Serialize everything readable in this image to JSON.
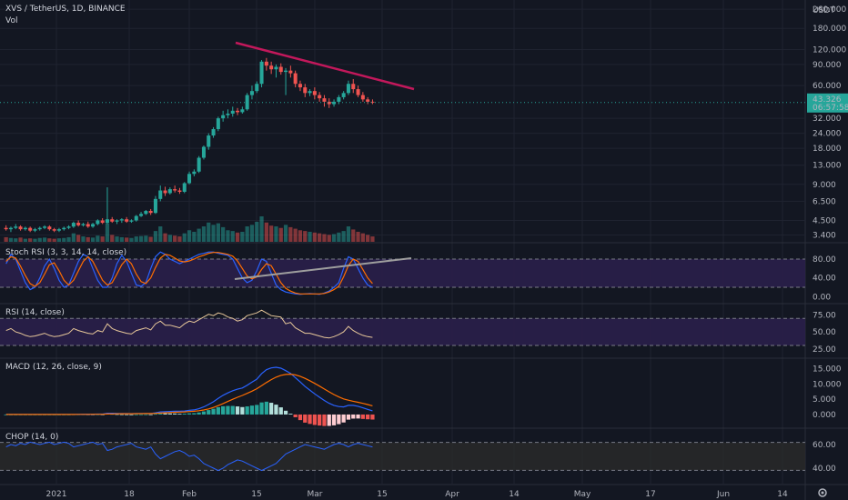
{
  "colors": {
    "background": "#131722",
    "grid": "#1f2330",
    "up": "#26a69a",
    "down": "#ef5350",
    "band": "#2a1f4a",
    "trendline_red": "#c2185b",
    "trendline_gray": "#9e9e9e",
    "price_tag": "#26a69a",
    "k_line": "#2962ff",
    "d_line": "#ff6d00"
  },
  "chart_data": [
    {
      "type": "candlestick",
      "panel": "price",
      "title": "XVS / TetherUS, 1D, BINANCE",
      "volume_label": "Vol",
      "y_scale": "log",
      "ylim": [
        3.2,
        270
      ],
      "y_ticks": [
        "260.000",
        "180.000",
        "120.000",
        "90.000",
        "60.000",
        "43.326",
        "32.000",
        "24.000",
        "18.000",
        "13.000",
        "9.000",
        "6.500",
        "4.500",
        "3.400"
      ],
      "y_unit": "USDT",
      "last_price": "43.326",
      "countdown": "06:57:58",
      "x_ticks": [
        "2021",
        "18",
        "Feb",
        "15",
        "Mar",
        "15",
        "Apr",
        "14",
        "May",
        "17",
        "Jun",
        "14"
      ],
      "candles": [
        [
          3.9,
          4.1,
          3.8,
          3.7
        ],
        [
          3.8,
          4.0,
          3.9,
          3.6
        ],
        [
          3.9,
          4.2,
          4.0,
          3.8
        ],
        [
          4.0,
          4.1,
          3.8,
          3.7
        ],
        [
          3.8,
          4.0,
          3.9,
          3.7
        ],
        [
          3.9,
          4.0,
          3.7,
          3.6
        ],
        [
          3.7,
          3.9,
          3.8,
          3.6
        ],
        [
          3.8,
          4.0,
          3.9,
          3.7
        ],
        [
          3.9,
          4.1,
          4.0,
          3.8
        ],
        [
          4.0,
          4.1,
          3.8,
          3.7
        ],
        [
          3.8,
          3.9,
          3.7,
          3.6
        ],
        [
          3.7,
          3.9,
          3.8,
          3.6
        ],
        [
          3.8,
          4.0,
          3.9,
          3.7
        ],
        [
          3.9,
          4.1,
          4.0,
          3.8
        ],
        [
          4.0,
          4.4,
          4.3,
          3.9
        ],
        [
          4.3,
          4.5,
          4.1,
          4.0
        ],
        [
          4.1,
          4.3,
          4.2,
          4.0
        ],
        [
          4.2,
          4.4,
          4.0,
          3.9
        ],
        [
          4.0,
          4.3,
          4.2,
          3.9
        ],
        [
          4.2,
          4.6,
          4.5,
          4.1
        ],
        [
          4.5,
          4.7,
          4.3,
          4.2
        ],
        [
          4.3,
          8.5,
          4.6,
          4.2
        ],
        [
          4.6,
          4.8,
          4.4,
          4.3
        ],
        [
          4.4,
          4.6,
          4.5,
          4.2
        ],
        [
          4.5,
          4.7,
          4.6,
          4.3
        ],
        [
          4.6,
          4.8,
          4.4,
          4.3
        ],
        [
          4.4,
          4.6,
          4.5,
          4.3
        ],
        [
          4.5,
          5.0,
          4.9,
          4.4
        ],
        [
          4.9,
          5.3,
          5.1,
          4.8
        ],
        [
          5.1,
          5.5,
          5.4,
          5.0
        ],
        [
          5.4,
          5.6,
          5.2,
          5.0
        ],
        [
          5.2,
          7.2,
          6.8,
          5.1
        ],
        [
          6.8,
          8.8,
          8.0,
          6.5
        ],
        [
          8.0,
          8.6,
          7.6,
          7.2
        ],
        [
          7.6,
          8.5,
          8.2,
          7.4
        ],
        [
          8.2,
          8.8,
          8.0,
          7.7
        ],
        [
          8.0,
          8.4,
          7.8,
          7.5
        ],
        [
          7.8,
          9.4,
          9.2,
          7.6
        ],
        [
          9.2,
          11.5,
          11.0,
          9.0
        ],
        [
          11.0,
          12.0,
          11.5,
          10.5
        ],
        [
          11.5,
          15.5,
          15.0,
          11.2
        ],
        [
          15.0,
          19.0,
          18.5,
          14.5
        ],
        [
          18.5,
          24.0,
          23.0,
          17.5
        ],
        [
          23.0,
          27.0,
          26.0,
          22.0
        ],
        [
          26.0,
          33.0,
          32.0,
          25.0
        ],
        [
          32.0,
          37.0,
          34.0,
          30.0
        ],
        [
          34.0,
          38.0,
          35.0,
          32.0
        ],
        [
          35.0,
          40.0,
          37.0,
          33.0
        ],
        [
          37.0,
          39.0,
          36.0,
          34.0
        ],
        [
          36.0,
          40.0,
          38.0,
          35.0
        ],
        [
          38.0,
          52.0,
          50.0,
          37.0
        ],
        [
          50.0,
          60.0,
          54.0,
          46.0
        ],
        [
          54.0,
          65.0,
          62.0,
          52.0
        ],
        [
          62.0,
          98.0,
          95.0,
          58.0
        ],
        [
          95.0,
          102.0,
          88.0,
          80.0
        ],
        [
          88.0,
          95.0,
          82.0,
          75.0
        ],
        [
          82.0,
          90.0,
          86.0,
          70.0
        ],
        [
          86.0,
          92.0,
          78.0,
          74.0
        ],
        [
          78.0,
          84.0,
          80.0,
          50.0
        ],
        [
          80.0,
          88.0,
          76.0,
          70.0
        ],
        [
          76.0,
          80.0,
          62.0,
          58.0
        ],
        [
          62.0,
          66.0,
          58.0,
          54.0
        ],
        [
          58.0,
          62.0,
          52.0,
          48.0
        ],
        [
          52.0,
          56.0,
          54.0,
          49.0
        ],
        [
          54.0,
          58.0,
          50.0,
          46.0
        ],
        [
          50.0,
          53.0,
          47.0,
          44.0
        ],
        [
          47.0,
          50.0,
          44.0,
          40.0
        ],
        [
          44.0,
          47.0,
          42.0,
          39.0
        ],
        [
          42.0,
          46.0,
          44.0,
          40.0
        ],
        [
          44.0,
          50.0,
          48.0,
          42.0
        ],
        [
          48.0,
          54.0,
          52.0,
          46.0
        ],
        [
          52.0,
          66.0,
          62.0,
          50.0
        ],
        [
          62.0,
          68.0,
          56.0,
          52.0
        ],
        [
          56.0,
          60.0,
          50.0,
          48.0
        ],
        [
          50.0,
          53.0,
          46.0,
          44.0
        ],
        [
          46.0,
          48.0,
          44.0,
          42.0
        ],
        [
          44.0,
          46.0,
          43.3,
          42.0
        ]
      ],
      "volume": [
        12,
        10,
        9,
        11,
        8,
        9,
        8,
        10,
        11,
        9,
        8,
        9,
        10,
        12,
        22,
        18,
        14,
        12,
        11,
        16,
        14,
        48,
        18,
        14,
        12,
        11,
        10,
        14,
        15,
        16,
        13,
        28,
        40,
        22,
        18,
        16,
        14,
        22,
        30,
        26,
        34,
        40,
        50,
        44,
        48,
        38,
        30,
        28,
        24,
        26,
        40,
        44,
        52,
        66,
        50,
        42,
        40,
        36,
        44,
        38,
        34,
        30,
        28,
        26,
        24,
        22,
        20,
        18,
        20,
        24,
        28,
        40,
        32,
        26,
        22,
        18,
        14
      ]
    },
    {
      "type": "line",
      "panel": "stoch_rsi",
      "title": "Stoch RSI (3, 3, 14, 14, close)",
      "ylim": [
        -5,
        105
      ],
      "y_ticks": [
        "80.00",
        "40.00",
        "0.00"
      ],
      "band": [
        20,
        80
      ],
      "series": [
        {
          "values": [
            70,
            90,
            80,
            55,
            30,
            15,
            20,
            40,
            65,
            80,
            60,
            35,
            20,
            25,
            50,
            75,
            90,
            85,
            60,
            35,
            20,
            20,
            40,
            70,
            88,
            75,
            50,
            25,
            22,
            30,
            60,
            85,
            95,
            90,
            80,
            75,
            70,
            75,
            80,
            85,
            90,
            92,
            95,
            95,
            92,
            90,
            88,
            80,
            60,
            40,
            30,
            35,
            55,
            80,
            75,
            50,
            25,
            15,
            10,
            8,
            6,
            5,
            6,
            7,
            6,
            5,
            8,
            12,
            20,
            30,
            60,
            85,
            80,
            60,
            40,
            25,
            20
          ]
        },
        {
          "values": [
            75,
            85,
            82,
            65,
            45,
            28,
            22,
            30,
            48,
            68,
            72,
            55,
            35,
            25,
            35,
            55,
            75,
            85,
            75,
            55,
            35,
            25,
            30,
            48,
            68,
            80,
            70,
            48,
            32,
            28,
            40,
            62,
            82,
            90,
            88,
            82,
            76,
            74,
            76,
            80,
            85,
            88,
            92,
            94,
            94,
            92,
            90,
            86,
            76,
            60,
            44,
            38,
            42,
            58,
            70,
            66,
            48,
            30,
            18,
            12,
            8,
            6,
            6,
            6,
            6,
            6,
            7,
            10,
            15,
            22,
            42,
            66,
            80,
            75,
            58,
            40,
            28
          ]
        }
      ]
    },
    {
      "type": "line",
      "panel": "rsi",
      "title": "RSI (14, close)",
      "ylim": [
        18,
        85
      ],
      "y_ticks": [
        "75.00",
        "50.00",
        "25.00"
      ],
      "band": [
        30,
        70
      ],
      "series": [
        {
          "values": [
            52,
            55,
            50,
            48,
            45,
            43,
            44,
            46,
            48,
            45,
            43,
            44,
            46,
            48,
            55,
            52,
            50,
            48,
            47,
            52,
            50,
            62,
            55,
            52,
            50,
            48,
            47,
            52,
            54,
            56,
            53,
            62,
            66,
            60,
            60,
            58,
            56,
            62,
            66,
            64,
            68,
            72,
            76,
            74,
            78,
            76,
            72,
            70,
            66,
            68,
            74,
            76,
            78,
            82,
            78,
            74,
            73,
            72,
            62,
            64,
            56,
            52,
            48,
            48,
            46,
            44,
            42,
            41,
            43,
            46,
            50,
            58,
            52,
            48,
            45,
            43,
            42
          ]
        }
      ]
    },
    {
      "type": "line",
      "panel": "macd",
      "title": "MACD (12, 26, close, 9)",
      "ylim": [
        -3,
        17
      ],
      "y_ticks": [
        "15.000",
        "10.000",
        "5.000",
        "0.000"
      ],
      "series": [
        {
          "values": [
            0,
            0,
            0,
            0,
            0,
            0,
            0,
            0,
            0,
            0,
            0,
            0,
            0,
            0,
            0.05,
            0.08,
            0.1,
            0.1,
            0.1,
            0.12,
            0.12,
            0.4,
            0.4,
            0.35,
            0.32,
            0.3,
            0.28,
            0.3,
            0.32,
            0.35,
            0.35,
            0.55,
            0.85,
            0.95,
            1.0,
            1.05,
            1.05,
            1.15,
            1.35,
            1.5,
            1.9,
            2.5,
            3.3,
            4.2,
            5.3,
            6.3,
            7.1,
            7.8,
            8.3,
            8.7,
            9.6,
            10.6,
            11.6,
            13.4,
            14.7,
            15.3,
            15.5,
            15.2,
            14.4,
            13.5,
            12.1,
            10.7,
            9.2,
            8.0,
            6.8,
            5.7,
            4.6,
            3.7,
            3.0,
            2.6,
            2.5,
            3.0,
            3.0,
            2.7,
            2.2,
            1.7,
            1.2
          ]
        },
        {
          "values": [
            0,
            0,
            0,
            0,
            0,
            0,
            0,
            0,
            0,
            0,
            0,
            0,
            0,
            0,
            0.01,
            0.03,
            0.04,
            0.05,
            0.06,
            0.07,
            0.08,
            0.15,
            0.2,
            0.23,
            0.25,
            0.26,
            0.26,
            0.27,
            0.28,
            0.3,
            0.31,
            0.36,
            0.46,
            0.56,
            0.65,
            0.73,
            0.79,
            0.86,
            0.96,
            1.07,
            1.24,
            1.49,
            1.85,
            2.32,
            2.91,
            3.59,
            4.29,
            4.99,
            5.65,
            6.26,
            6.93,
            7.67,
            8.45,
            9.44,
            10.49,
            11.45,
            12.26,
            12.85,
            13.16,
            13.23,
            13.0,
            12.54,
            11.87,
            11.09,
            10.23,
            9.33,
            8.38,
            7.45,
            6.56,
            5.77,
            5.12,
            4.69,
            4.35,
            4.02,
            3.66,
            3.27,
            2.86
          ]
        }
      ]
    },
    {
      "type": "line",
      "panel": "chop",
      "title": "CHOP (14, 0)",
      "ylim": [
        30,
        70
      ],
      "y_ticks": [
        "60.00",
        "40.00"
      ],
      "band": [
        38.2,
        61.8
      ],
      "series": [
        {
          "values": [
            58,
            60,
            59,
            61,
            60,
            62,
            61,
            60,
            61,
            62,
            60,
            61,
            62,
            61,
            58,
            59,
            60,
            61,
            62,
            60,
            61,
            55,
            56,
            58,
            59,
            60,
            61,
            58,
            57,
            56,
            58,
            52,
            48,
            50,
            52,
            54,
            55,
            53,
            50,
            51,
            48,
            44,
            42,
            40,
            38,
            40,
            43,
            45,
            47,
            46,
            44,
            42,
            40,
            38,
            40,
            42,
            44,
            48,
            52,
            54,
            56,
            58,
            60,
            59,
            58,
            57,
            56,
            58,
            60,
            61,
            60,
            58,
            60,
            61,
            60,
            59,
            58
          ]
        }
      ]
    }
  ]
}
